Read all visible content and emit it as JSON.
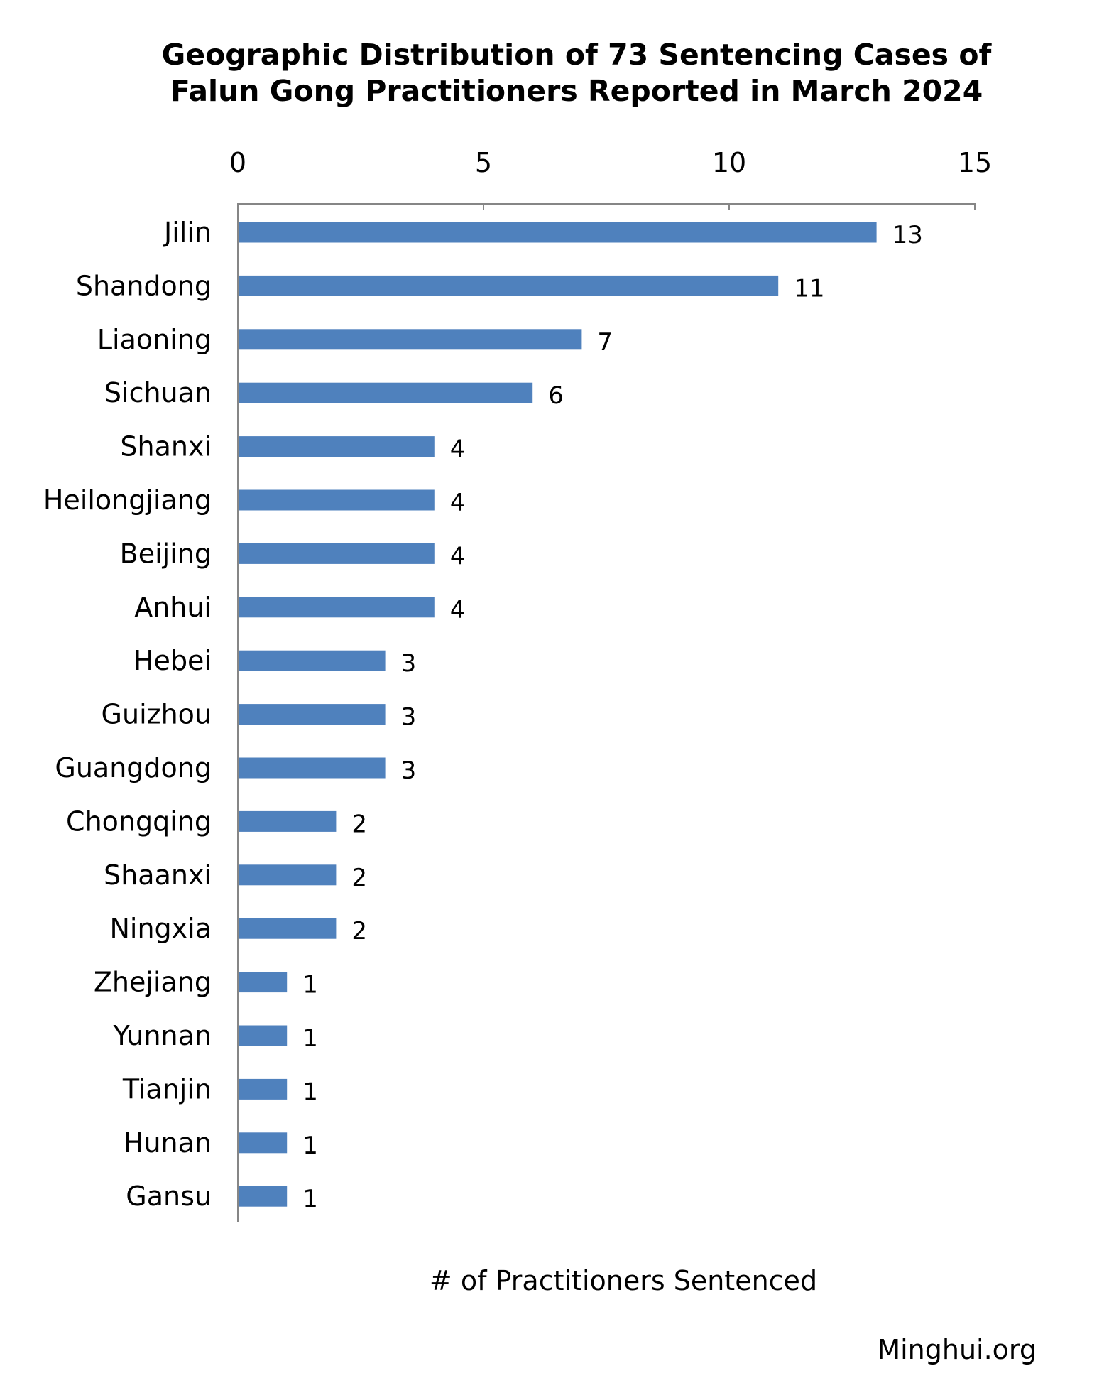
{
  "chart_data": {
    "type": "bar",
    "orientation": "horizontal",
    "title_lines": [
      "Geographic Distribution of 73 Sentencing Cases of",
      "Falun Gong Practitioners Reported in March 2024"
    ],
    "xlabel": "# of Practitioners Sentenced",
    "ylabel": "",
    "xlim": [
      0,
      15
    ],
    "x_ticks": [
      0,
      5,
      10,
      15
    ],
    "x_axis_position": "top",
    "grid": false,
    "legend": "none",
    "categories": [
      "Jilin",
      "Shandong",
      "Liaoning",
      "Sichuan",
      "Shanxi",
      "Heilongjiang",
      "Beijing",
      "Anhui",
      "Hebei",
      "Guizhou",
      "Guangdong",
      "Chongqing",
      "Shaanxi",
      "Ningxia",
      "Zhejiang",
      "Yunnan",
      "Tianjin",
      "Hunan",
      "Gansu"
    ],
    "values": [
      13,
      11,
      7,
      6,
      4,
      4,
      4,
      4,
      3,
      3,
      3,
      2,
      2,
      2,
      1,
      1,
      1,
      1,
      1
    ],
    "data_labels": true,
    "bar_color": "#4F81BD",
    "axis_color": "#868686"
  },
  "source": {
    "watermark": "Minghui.org"
  }
}
